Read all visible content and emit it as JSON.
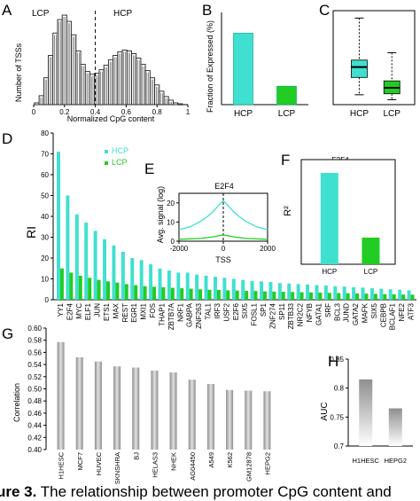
{
  "caption": {
    "label": "ure 3.",
    "text": "The relationship between promoter CpG content and"
  },
  "panels": {
    "A": "A",
    "B": "B",
    "C": "C",
    "D": "D",
    "E": "E",
    "F": "F",
    "G": "G",
    "H": "H"
  },
  "colors": {
    "hcp": "#40E0D0",
    "lcp": "#22CC22",
    "hist": "#222222",
    "gray": "#999999"
  },
  "chart_data": [
    {
      "panel": "A",
      "type": "area",
      "xlabel": "Normalized CpG content",
      "ylabel": "Number of TSSs",
      "xlim": [
        0,
        1
      ],
      "x_ticks": [
        0,
        0.2,
        0.4,
        0.6,
        0.8,
        1
      ],
      "annotations": [
        "LCP",
        "HCP"
      ],
      "divider_x": 0.4,
      "x": [
        0.02,
        0.05,
        0.08,
        0.11,
        0.14,
        0.17,
        0.2,
        0.23,
        0.26,
        0.29,
        0.32,
        0.35,
        0.38,
        0.41,
        0.44,
        0.47,
        0.5,
        0.53,
        0.56,
        0.59,
        0.62,
        0.65,
        0.68,
        0.71,
        0.74,
        0.77,
        0.8,
        0.83,
        0.86,
        0.89,
        0.92,
        0.95
      ],
      "values": [
        0.02,
        0.1,
        0.3,
        0.55,
        0.8,
        0.95,
        1.0,
        0.93,
        0.78,
        0.6,
        0.45,
        0.37,
        0.34,
        0.35,
        0.39,
        0.44,
        0.5,
        0.55,
        0.59,
        0.61,
        0.6,
        0.57,
        0.52,
        0.45,
        0.38,
        0.3,
        0.22,
        0.15,
        0.09,
        0.05,
        0.02,
        0.01
      ]
    },
    {
      "panel": "B",
      "type": "bar",
      "ylabel": "Fraction of Expressed (%)",
      "categories": [
        "HCP",
        "LCP"
      ],
      "values": [
        62,
        16
      ],
      "ylim": [
        0,
        80
      ]
    },
    {
      "panel": "C",
      "type": "box",
      "categories": [
        "HCP",
        "LCP"
      ],
      "boxes": [
        {
          "name": "HCP",
          "whisker_low": -3,
          "q1": 0.5,
          "median": 2.6,
          "q3": 4.0,
          "whisker_high": 12.5
        },
        {
          "name": "LCP",
          "whisker_low": -4,
          "q1": -2.8,
          "median": -1.6,
          "q3": -0.2,
          "whisker_high": 5.5
        }
      ],
      "ylim": [
        -5,
        14
      ]
    },
    {
      "panel": "D",
      "type": "bar",
      "ylabel": "RI",
      "ylim": [
        0,
        80
      ],
      "y_ticks": [
        0,
        10,
        20,
        30,
        40,
        50,
        60,
        70,
        80
      ],
      "legend": [
        "HCP",
        "LCP"
      ],
      "categories": [
        "YY1",
        "E2F4",
        "MYC",
        "ELF1",
        "JUN",
        "ETS1",
        "MAX",
        "REST",
        "EGR1",
        "MXI1",
        "FOS",
        "THAP1",
        "ZBTB7A",
        "NRF1",
        "GABPA",
        "ZNF263",
        "TAL1",
        "IRF3",
        "USF2",
        "E2F6",
        "SIX5",
        "FOSL1",
        "SP1",
        "ZNF274",
        "SP11",
        "ZBTB33",
        "NR2C2",
        "NFYB",
        "GATA1",
        "SRF",
        "BCL3",
        "JUND",
        "GATA2",
        "MAFK",
        "SIX5",
        "CEBPB",
        "BCLAF1",
        "NFE2",
        "ATF3"
      ],
      "series": [
        {
          "name": "HCP",
          "values": [
            71,
            50,
            41,
            37,
            33,
            29,
            26,
            23,
            20,
            19,
            17,
            15,
            14,
            13,
            13,
            12,
            11.5,
            11,
            10.5,
            10,
            9.5,
            9,
            8.8,
            8.5,
            8,
            7.8,
            7.5,
            7.3,
            7,
            6.8,
            6.5,
            6.3,
            6,
            5.8,
            5.5,
            5.3,
            5,
            4.8,
            4.5
          ]
        },
        {
          "name": "LCP",
          "values": [
            15,
            13,
            11.5,
            10.5,
            9.5,
            8.8,
            8.2,
            7.5,
            7,
            6.5,
            6.2,
            6,
            5.7,
            5.5,
            5.3,
            5,
            4.8,
            4.7,
            4.5,
            4.4,
            4.3,
            4.2,
            4,
            3.9,
            3.8,
            3.7,
            3.6,
            3.5,
            3.4,
            3.3,
            3.2,
            3.1,
            3,
            2.9,
            2.8,
            2.7,
            2.6,
            2.5,
            2.4
          ]
        }
      ]
    },
    {
      "panel": "E",
      "type": "line",
      "title": "E2F4",
      "xlabel": "TSS",
      "ylabel": "Avg. signal (log)",
      "xlim": [
        -2000,
        2000
      ],
      "x_ticks": [
        -2000,
        0,
        2000
      ],
      "ylim": [
        0,
        25
      ],
      "y_ticks": [
        0,
        10,
        20
      ],
      "x": [
        -2000,
        -1500,
        -1000,
        -700,
        -500,
        -300,
        -150,
        0,
        150,
        300,
        500,
        700,
        1000,
        1500,
        2000
      ],
      "series": [
        {
          "name": "HCP",
          "values": [
            6,
            7.5,
            10.5,
            13,
            15,
            17.5,
            19.5,
            21,
            19.5,
            17.5,
            15,
            13,
            10.5,
            7.5,
            6
          ]
        },
        {
          "name": "LCP",
          "values": [
            1,
            1.2,
            1.5,
            1.9,
            2.2,
            2.6,
            3,
            3.3,
            3,
            2.6,
            2.2,
            1.9,
            1.5,
            1.2,
            1
          ]
        }
      ]
    },
    {
      "panel": "F",
      "type": "bar",
      "title": "E2F4",
      "ylabel": "R²",
      "categories": [
        "HCP",
        "LCP"
      ],
      "values": [
        0.48,
        0.14
      ],
      "ylim": [
        0,
        0.55
      ]
    },
    {
      "panel": "G",
      "type": "bar",
      "ylabel": "Correlation",
      "ylim": [
        0.4,
        0.6
      ],
      "y_ticks": [
        0.4,
        0.42,
        0.44,
        0.46,
        0.48,
        0.5,
        0.52,
        0.54,
        0.56,
        0.58,
        0.6
      ],
      "categories": [
        "H1HESC",
        "MCF7",
        "HUVEC",
        "SKNSHRA",
        "BJ",
        "HELAS3",
        "NHEK",
        "AG04450",
        "A549",
        "K562",
        "GM12878",
        "HEPG2"
      ],
      "values": [
        0.577,
        0.552,
        0.545,
        0.537,
        0.535,
        0.53,
        0.527,
        0.515,
        0.508,
        0.498,
        0.497,
        0.496
      ]
    },
    {
      "panel": "H",
      "type": "bar",
      "ylabel": "AUC",
      "ylim": [
        0.7,
        0.85
      ],
      "y_ticks": [
        0.7,
        0.75,
        0.8,
        0.85
      ],
      "y_tick_labels": [
        "0.7",
        "0.75",
        "0.8",
        "0.85"
      ],
      "categories": [
        "H1HESC",
        "HEPG2"
      ],
      "values": [
        0.815,
        0.765
      ]
    }
  ]
}
